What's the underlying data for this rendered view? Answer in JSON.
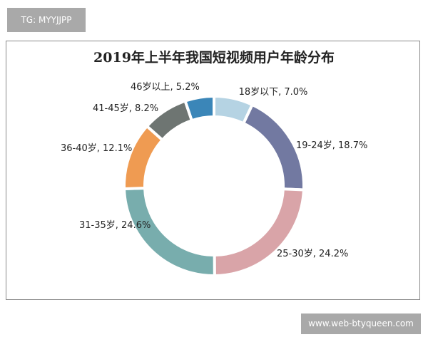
{
  "tag": "TG: MYYJJPP",
  "watermark": "www.web-btyqueen.com",
  "chart_data": {
    "type": "pie",
    "donut": true,
    "title": "2019年上半年我国短视频用户年龄分布",
    "categories": [
      "18岁以下",
      "19-24岁",
      "25-30岁",
      "31-35岁",
      "36-40岁",
      "41-45岁",
      "46岁以上"
    ],
    "values": [
      7.0,
      18.7,
      24.2,
      24.6,
      12.1,
      8.2,
      5.2
    ],
    "labels": [
      "18岁以下, 7.0%",
      "19-24岁, 18.7%",
      "25-30岁, 24.2%",
      "31-35岁, 24.6%",
      "36-40岁, 12.1%",
      "41-45岁, 8.2%",
      "46岁以上, 5.2%"
    ],
    "colors": [
      "#b5d3e3",
      "#7279a1",
      "#d9a4a8",
      "#78adad",
      "#ef9b52",
      "#6e7572",
      "#3b86b8"
    ],
    "legend": "none"
  }
}
